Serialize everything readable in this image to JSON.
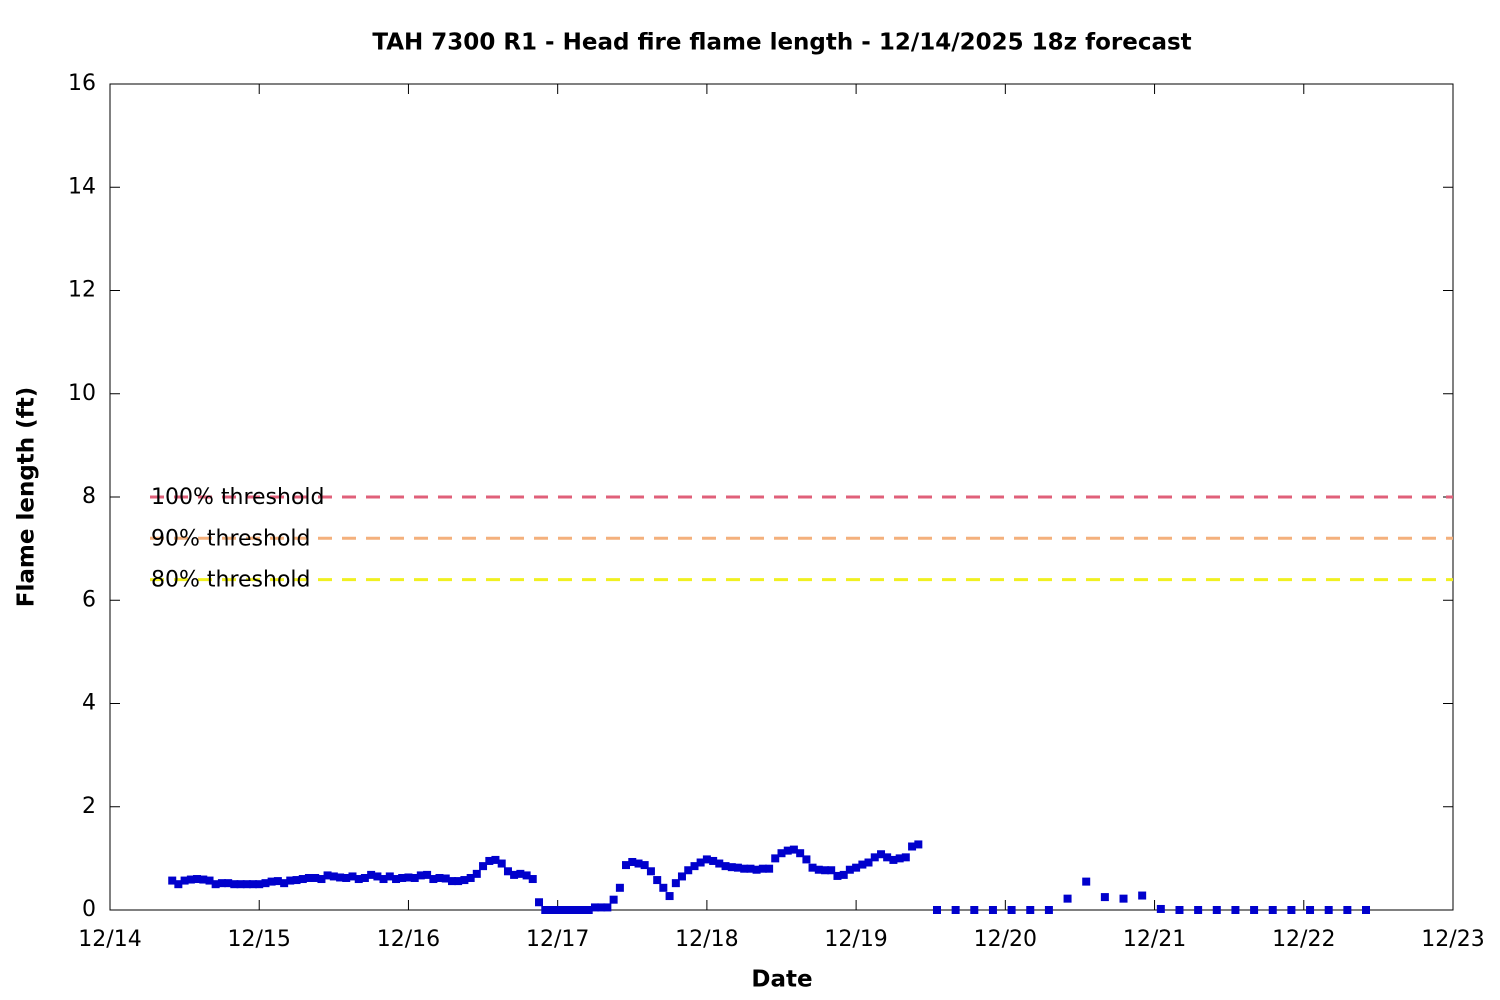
{
  "chart_data": {
    "type": "scatter",
    "title": "TAH 7300 R1 - Head fire flame length - 12/14/2025 18z forecast",
    "x_label": "Date",
    "y_label": "Flame length (ft)",
    "xlim": [
      0,
      9
    ],
    "ylim": [
      0,
      16
    ],
    "xticks": [
      {
        "value": 0,
        "label": "12/14"
      },
      {
        "value": 1,
        "label": "12/15"
      },
      {
        "value": 2,
        "label": "12/16"
      },
      {
        "value": 3,
        "label": "12/17"
      },
      {
        "value": 4,
        "label": "12/18"
      },
      {
        "value": 5,
        "label": "12/19"
      },
      {
        "value": 6,
        "label": "12/20"
      },
      {
        "value": 7,
        "label": "12/21"
      },
      {
        "value": 8,
        "label": "12/22"
      },
      {
        "value": 9,
        "label": "12/23"
      }
    ],
    "yticks": [
      0,
      2,
      4,
      6,
      8,
      10,
      12,
      14,
      16
    ],
    "thresholds": [
      {
        "name": "100% threshold",
        "value": 8,
        "color": "#e0607a"
      },
      {
        "name": "90% threshold",
        "value": 7.2,
        "color": "#f4b07c"
      },
      {
        "name": "80% threshold",
        "value": 6.4,
        "color": "#f0f020"
      }
    ],
    "series": [
      {
        "color": "#0000cc",
        "x": [
          0.417,
          0.458,
          0.5,
          0.542,
          0.583,
          0.625,
          0.667,
          0.708,
          0.75,
          0.792,
          0.833,
          0.875,
          0.917,
          0.958,
          1,
          1.042,
          1.083,
          1.125,
          1.167,
          1.208,
          1.25,
          1.292,
          1.333,
          1.375,
          1.417,
          1.458,
          1.5,
          1.542,
          1.583,
          1.625,
          1.667,
          1.708,
          1.75,
          1.792,
          1.833,
          1.875,
          1.917,
          1.958,
          2,
          2.042,
          2.083,
          2.125,
          2.167,
          2.208,
          2.25,
          2.292,
          2.333,
          2.375,
          2.417,
          2.458,
          2.5,
          2.542,
          2.583,
          2.625,
          2.667,
          2.708,
          2.75,
          2.792,
          2.833,
          2.875,
          2.917,
          2.958,
          3,
          3.042,
          3.083,
          3.125,
          3.167,
          3.208,
          3.25,
          3.292,
          3.333,
          3.375,
          3.417,
          3.458,
          3.5,
          3.542,
          3.583,
          3.625,
          3.667,
          3.708,
          3.75,
          3.792,
          3.833,
          3.875,
          3.917,
          3.958,
          4,
          4.042,
          4.083,
          4.125,
          4.167,
          4.208,
          4.25,
          4.292,
          4.333,
          4.375,
          4.417,
          4.458,
          4.5,
          4.542,
          4.583,
          4.625,
          4.667,
          4.708,
          4.75,
          4.792,
          4.833,
          4.875,
          4.917,
          4.958,
          5,
          5.042,
          5.083,
          5.125,
          5.167,
          5.208,
          5.25,
          5.292,
          5.333,
          5.375,
          5.417,
          5.542,
          5.667,
          5.792,
          5.917,
          6.042,
          6.167,
          6.292,
          6.417,
          6.542,
          6.667,
          6.792,
          6.917,
          7.042,
          7.167,
          7.292,
          7.417,
          7.542,
          7.667,
          7.792,
          7.917,
          8.042,
          8.167,
          8.292,
          8.417
        ],
        "values": [
          0.57,
          0.5,
          0.57,
          0.59,
          0.6,
          0.59,
          0.57,
          0.5,
          0.52,
          0.52,
          0.5,
          0.5,
          0.5,
          0.5,
          0.5,
          0.52,
          0.55,
          0.56,
          0.52,
          0.57,
          0.58,
          0.6,
          0.62,
          0.62,
          0.6,
          0.67,
          0.65,
          0.63,
          0.62,
          0.65,
          0.6,
          0.62,
          0.68,
          0.65,
          0.6,
          0.65,
          0.6,
          0.62,
          0.63,
          0.62,
          0.67,
          0.68,
          0.6,
          0.62,
          0.61,
          0.56,
          0.56,
          0.58,
          0.62,
          0.7,
          0.85,
          0.95,
          0.97,
          0.9,
          0.75,
          0.68,
          0.7,
          0.67,
          0.6,
          0.15,
          0,
          0,
          0,
          0,
          0,
          0,
          0,
          0,
          0.05,
          0.05,
          0.05,
          0.2,
          0.43,
          0.87,
          0.93,
          0.9,
          0.87,
          0.75,
          0.58,
          0.43,
          0.27,
          0.52,
          0.65,
          0.77,
          0.85,
          0.92,
          0.98,
          0.95,
          0.9,
          0.85,
          0.83,
          0.82,
          0.8,
          0.8,
          0.78,
          0.8,
          0.8,
          1.0,
          1.1,
          1.15,
          1.17,
          1.1,
          0.98,
          0.82,
          0.78,
          0.77,
          0.77,
          0.66,
          0.68,
          0.78,
          0.82,
          0.88,
          0.92,
          1.02,
          1.08,
          1.02,
          0.97,
          1.0,
          1.02,
          1.23,
          1.27,
          0,
          0,
          0,
          0,
          0,
          0,
          0,
          0.22,
          0.55,
          0.25,
          0.22,
          0.28,
          0.02,
          0,
          0,
          0,
          0,
          0,
          0,
          0,
          0,
          0,
          0,
          0
        ]
      }
    ]
  }
}
